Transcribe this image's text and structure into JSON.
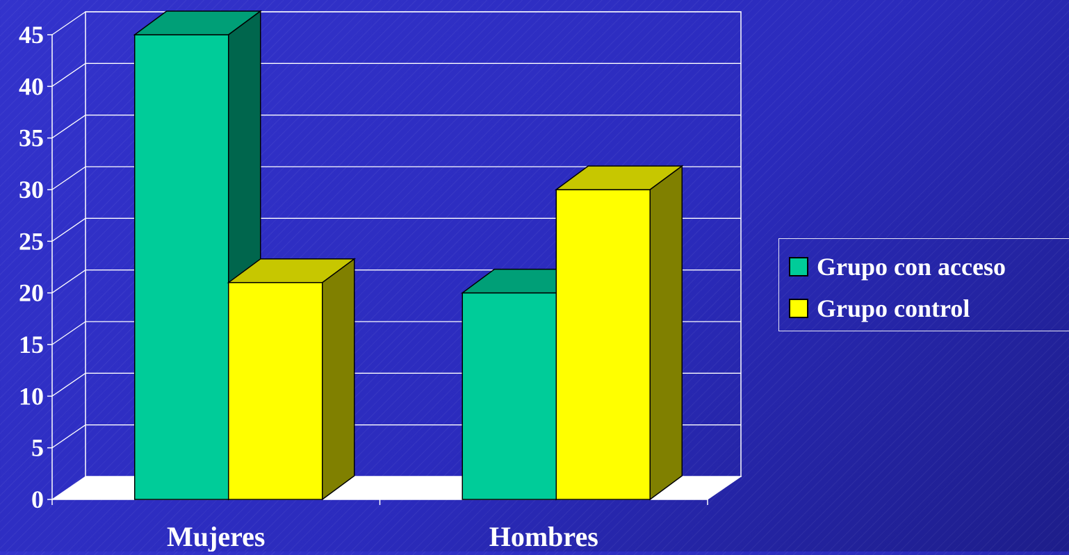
{
  "chart_data": {
    "type": "bar",
    "categories": [
      "Mujeres",
      "Hombres"
    ],
    "series": [
      {
        "name": "Grupo con acceso",
        "values": [
          45,
          20
        ],
        "color": "#00cc99"
      },
      {
        "name": "Grupo control",
        "values": [
          21,
          30
        ],
        "color": "#ffff00"
      }
    ],
    "y_ticks": [
      "0",
      "5",
      "10",
      "15",
      "20",
      "25",
      "30",
      "35",
      "40",
      "45"
    ],
    "ylim": [
      0,
      45
    ],
    "grid": true,
    "legend_position": "right"
  },
  "legend": {
    "items": [
      {
        "label": "Grupo con acceso",
        "color": "#00cc99"
      },
      {
        "label": "Grupo control",
        "color": "#ffff00"
      }
    ]
  }
}
